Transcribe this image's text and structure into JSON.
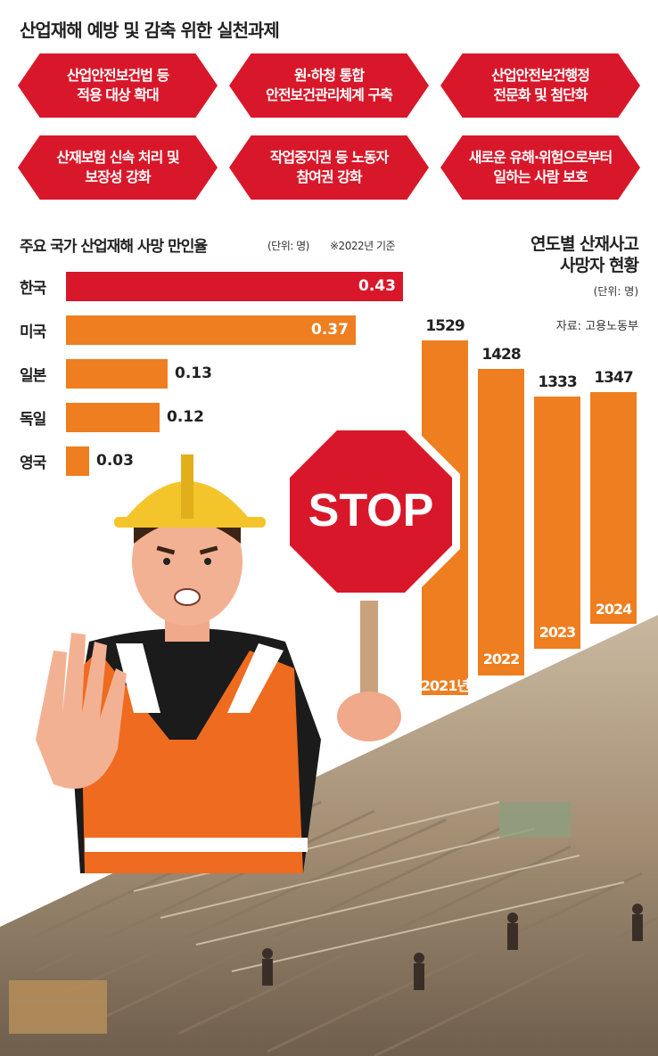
{
  "title": "산업재해 예방 및 감축 위한 실천과제",
  "tasks": [
    "산업안전보건법 등\n적용 대상 확대",
    "원·하청 통합\n안전보건관리체계 구축",
    "산업안전보건행정\n전문화 및 첨단화",
    "산재보험 신속 처리 및\n보장성 강화",
    "작업중지권 등 노동자\n참여권 강화",
    "새로운 유해·위험으로부터\n일하는 사람 보호"
  ],
  "sign_text": "STOP",
  "colors": {
    "red": "#d8182a",
    "orange": "#ee7e1f"
  },
  "chart_data": [
    {
      "type": "bar",
      "orientation": "horizontal",
      "title": "주요 국가 산업재해 사망 만인율",
      "unit": "(단위: 명)",
      "note": "※2022년 기준",
      "categories": [
        "한국",
        "미국",
        "일본",
        "독일",
        "영국"
      ],
      "values": [
        0.43,
        0.37,
        0.13,
        0.12,
        0.03
      ],
      "value_labels": [
        "0.43",
        "0.37",
        "0.13",
        "0.12",
        "0.03"
      ],
      "highlight_color": "#d8182a",
      "bar_color": "#ee7e1f"
    },
    {
      "type": "bar",
      "orientation": "vertical",
      "title": "연도별 산재사고\n사망자 현황",
      "unit": "(단위: 명)",
      "source": "자료: 고용노동부",
      "categories": [
        "2021년",
        "2022",
        "2023",
        "2024"
      ],
      "values": [
        1529,
        1428,
        1333,
        1347
      ],
      "value_labels": [
        "1529",
        "1428",
        "1333",
        "1347"
      ],
      "bar_color": "#ee7e1f"
    }
  ]
}
